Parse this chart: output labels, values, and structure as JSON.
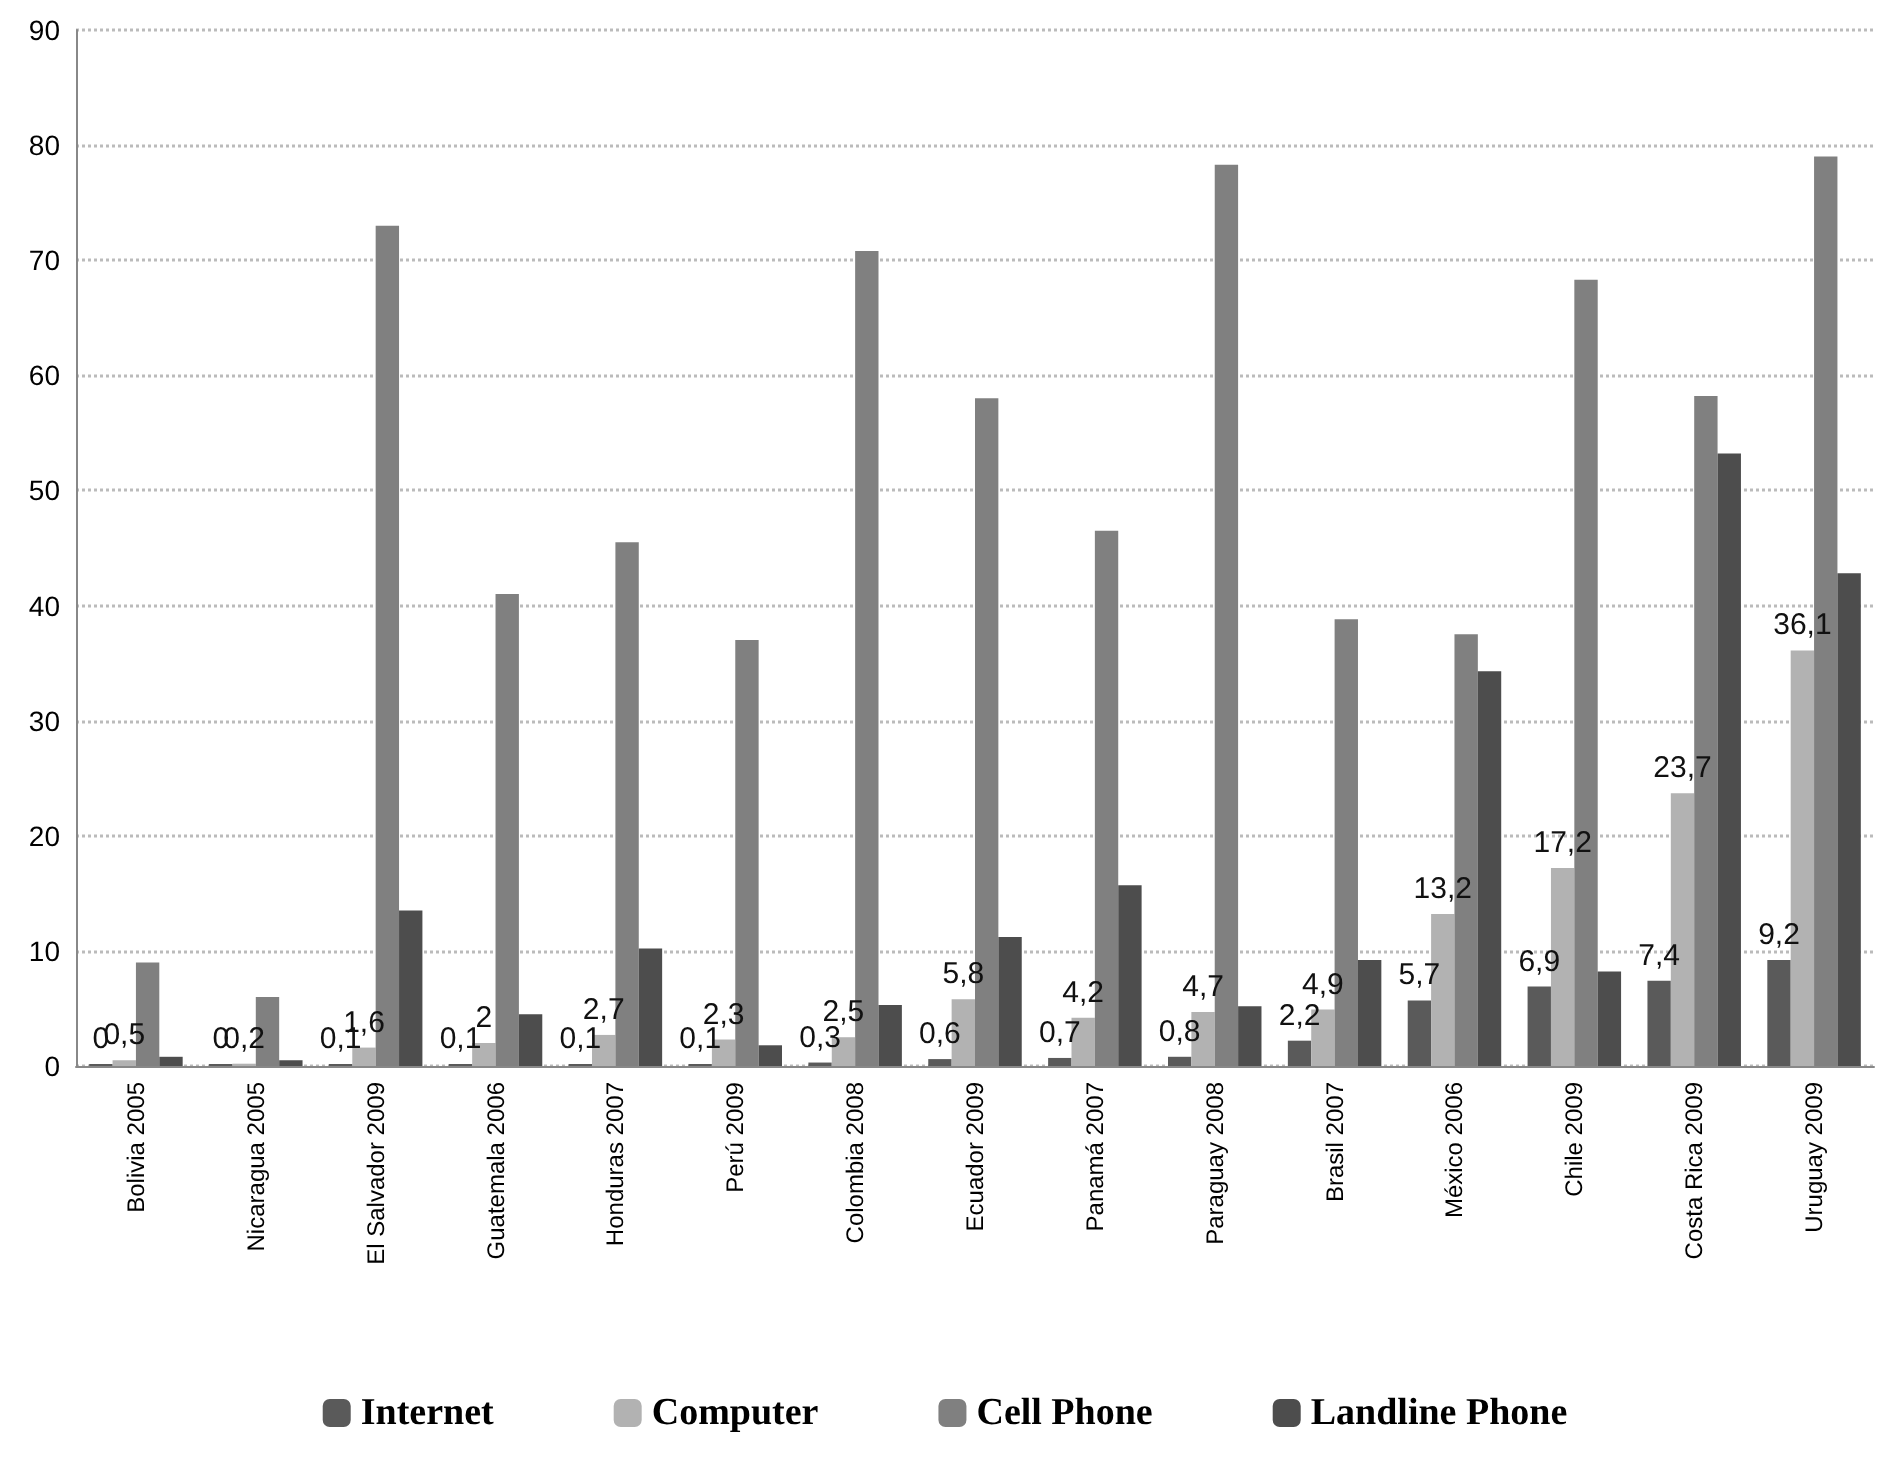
{
  "chart_data": {
    "type": "bar",
    "categories": [
      "Bolivia 2005",
      "Nicaragua 2005",
      "El Salvador 2009",
      "Guatemala 2006",
      "Honduras 2007",
      "Perú 2009",
      "Colombia 2008",
      "Ecuador 2009",
      "Panamá 2007",
      "Paraguay 2008",
      "Brasil 2007",
      "México 2006",
      "Chile 2009",
      "Costa Rica 2009",
      "Uruguay 2009"
    ],
    "series": [
      {
        "name": "Internet",
        "color": "#5a5a5a",
        "values": [
          0,
          0,
          0.1,
          0.1,
          0.1,
          0.1,
          0.3,
          0.6,
          0.7,
          0.8,
          2.2,
          5.7,
          6.9,
          7.4,
          9.2
        ],
        "value_labels": [
          "0",
          "0",
          "0,1",
          "0,1",
          "0,1",
          "0,1",
          "0,3",
          "0,6",
          "0,7",
          "0,8",
          "2,2",
          "5,7",
          "6,9",
          "7,4",
          "9,2"
        ]
      },
      {
        "name": "Computer",
        "color": "#b2b2b2",
        "values": [
          0.5,
          0.2,
          1.6,
          2,
          2.7,
          2.3,
          2.5,
          5.8,
          4.2,
          4.7,
          4.9,
          13.2,
          17.2,
          23.7,
          36.1
        ],
        "value_labels": [
          "0,5",
          "0,2",
          "1,6",
          "2",
          "2,7",
          "2,3",
          "2,5",
          "5,8",
          "4,2",
          "4,7",
          "4,9",
          "13,2",
          "17,2",
          "23,7",
          "36,1"
        ]
      },
      {
        "name": "Cell Phone",
        "color": "#808080",
        "values": [
          9,
          6,
          73,
          41,
          45.5,
          37,
          70.8,
          58,
          46.5,
          78.3,
          38.8,
          37.5,
          68.3,
          58.2,
          79
        ]
      },
      {
        "name": "Landline Phone",
        "color": "#4d4d4d",
        "values": [
          0.8,
          0.5,
          13.5,
          4.5,
          10.2,
          1.8,
          5.3,
          11.2,
          15.7,
          5.2,
          9.2,
          34.3,
          8.2,
          53.2,
          42.8
        ]
      }
    ],
    "ylim": [
      0,
      90
    ],
    "yticks": [
      0,
      10,
      20,
      30,
      40,
      50,
      60,
      70,
      80,
      90
    ],
    "grid": "y",
    "legend": "bottom"
  }
}
